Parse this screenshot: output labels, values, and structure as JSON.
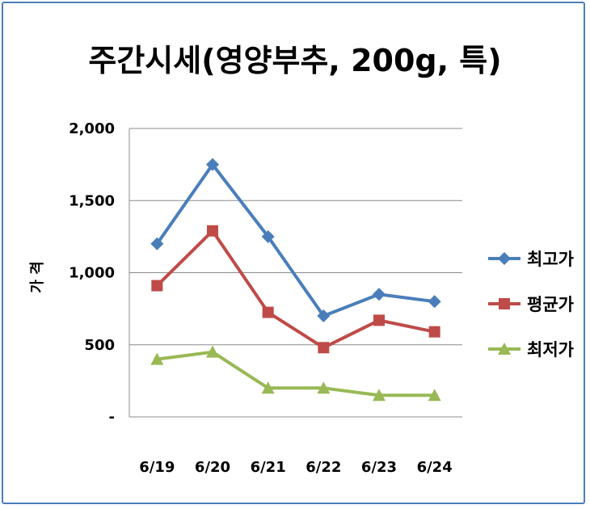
{
  "chart_data": {
    "type": "line",
    "title": "주간시세(영양부추, 200g, 특)",
    "xlabel": "",
    "ylabel": "가 격",
    "categories": [
      "6/19",
      "6/20",
      "6/21",
      "6/22",
      "6/23",
      "6/24"
    ],
    "ylim": [
      0,
      2000
    ],
    "yticks": [
      0,
      500,
      1000,
      1500,
      2000
    ],
    "ytick_labels": [
      "-",
      "500",
      "1,000",
      "1,500",
      "2,000"
    ],
    "grid": true,
    "legend_position": "right",
    "series": [
      {
        "name": "최고가",
        "values": [
          1200,
          1750,
          1250,
          700,
          850,
          800
        ],
        "color": "#4a7ebb",
        "marker": "diamond"
      },
      {
        "name": "평균가",
        "values": [
          910,
          1290,
          725,
          480,
          670,
          590
        ],
        "color": "#be4b48",
        "marker": "square"
      },
      {
        "name": "최저가",
        "values": [
          400,
          450,
          200,
          200,
          150,
          150
        ],
        "color": "#98b954",
        "marker": "triangle"
      }
    ]
  }
}
